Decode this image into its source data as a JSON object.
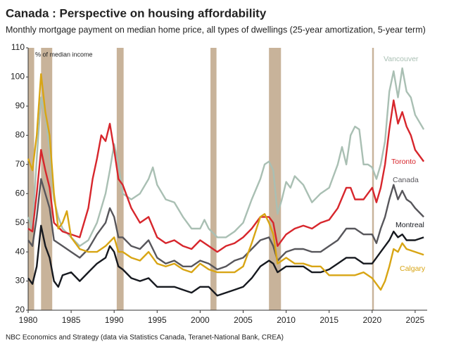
{
  "chart_data": {
    "type": "line",
    "title": "Canada : Perspective on housing affordability",
    "subtitle": "Monthly mortgage payment on median home price, all types of dwellings (25-year amortization, 5-year term)",
    "y_axis_label": "% of median income",
    "source": "NBC Economics and Strategy (data via Statistics Canada, Teranet-National Bank, CREA)",
    "xlim": [
      1980,
      2026.4
    ],
    "ylim": [
      20,
      110
    ],
    "xticks": [
      1980,
      1985,
      1990,
      1995,
      2000,
      2005,
      2010,
      2015,
      2020,
      2025
    ],
    "yticks": [
      20,
      30,
      40,
      50,
      60,
      70,
      80,
      90,
      100,
      110
    ],
    "recessions": [
      [
        1980,
        1980.7
      ],
      [
        1981.5,
        1982.8
      ],
      [
        1990.3,
        1991.1
      ],
      [
        2001.2,
        2001.9
      ],
      [
        2008.0,
        2009.4
      ],
      [
        2020.0,
        2020.2
      ]
    ],
    "recession_color": "#c2ab8f",
    "series": [
      {
        "name": "Vancouver",
        "color": "#a9bfb3",
        "x": [
          1980,
          1980.5,
          1981,
          1981.5,
          1982,
          1982.5,
          1983,
          1983.5,
          1984,
          1985,
          1986,
          1987,
          1988,
          1989,
          1989.5,
          1990,
          1990.5,
          1991,
          1992,
          1993,
          1994,
          1994.5,
          1995,
          1996,
          1997,
          1998,
          1999,
          2000,
          2000.5,
          2001,
          2002,
          2003,
          2004,
          2005,
          2006,
          2007,
          2007.5,
          2008,
          2008.5,
          2009,
          2009.5,
          2010,
          2010.5,
          2011,
          2012,
          2013,
          2014,
          2015,
          2016,
          2016.5,
          2017,
          2017.5,
          2018,
          2018.5,
          2019,
          2019.5,
          2020,
          2020.5,
          2021,
          2021.5,
          2022,
          2022.5,
          2023,
          2023.5,
          2024,
          2024.5,
          2025,
          2026
        ],
        "values": [
          52,
          48,
          72,
          93,
          87,
          75,
          58,
          52,
          48,
          45,
          42,
          44,
          50,
          60,
          68,
          77,
          70,
          60,
          58,
          60,
          65,
          69,
          63,
          58,
          57,
          52,
          48,
          48,
          51,
          48,
          45,
          45,
          47,
          50,
          58,
          65,
          70,
          71,
          68,
          53,
          58,
          64,
          62,
          66,
          63,
          57,
          60,
          62,
          70,
          76,
          70,
          80,
          83,
          82,
          70,
          70,
          69,
          65,
          70,
          78,
          95,
          102,
          93,
          103,
          95,
          93,
          87,
          82
        ]
      },
      {
        "name": "Toronto",
        "color": "#d7262c",
        "x": [
          1980,
          1980.5,
          1981,
          1981.5,
          1982,
          1982.5,
          1983,
          1984,
          1985,
          1986,
          1987,
          1987.5,
          1988,
          1988.5,
          1989,
          1989.5,
          1990,
          1990.5,
          1991,
          1992,
          1993,
          1994,
          1995,
          1996,
          1997,
          1998,
          1999,
          2000,
          2001,
          2002,
          2003,
          2004,
          2005,
          2006,
          2007,
          2008,
          2008.5,
          2009,
          2010,
          2011,
          2012,
          2013,
          2014,
          2015,
          2016,
          2017,
          2017.5,
          2018,
          2019,
          2019.5,
          2020,
          2020.5,
          2021,
          2021.5,
          2022,
          2022.5,
          2023,
          2023.5,
          2024,
          2024.5,
          2025,
          2026
        ],
        "values": [
          48,
          47,
          60,
          75,
          68,
          62,
          50,
          47,
          46,
          45,
          55,
          65,
          72,
          80,
          78,
          84,
          75,
          65,
          63,
          55,
          50,
          52,
          45,
          43,
          44,
          42,
          41,
          44,
          42,
          40,
          42,
          43,
          45,
          48,
          52,
          52,
          50,
          42,
          46,
          48,
          49,
          48,
          50,
          51,
          55,
          62,
          62,
          58,
          58,
          60,
          62,
          57,
          62,
          70,
          82,
          92,
          84,
          88,
          83,
          80,
          75,
          71
        ]
      },
      {
        "name": "Canada",
        "color": "#57565b",
        "x": [
          1980,
          1980.5,
          1981,
          1981.5,
          1982,
          1982.5,
          1983,
          1984,
          1985,
          1986,
          1987,
          1988,
          1989,
          1989.5,
          1990,
          1990.5,
          1991,
          1992,
          1993,
          1994,
          1995,
          1996,
          1997,
          1998,
          1999,
          2000,
          2001,
          2002,
          2003,
          2004,
          2005,
          2006,
          2007,
          2008,
          2008.5,
          2009,
          2010,
          2011,
          2012,
          2013,
          2014,
          2015,
          2016,
          2017,
          2018,
          2019,
          2020,
          2020.5,
          2021,
          2021.5,
          2022,
          2022.5,
          2023,
          2023.5,
          2024,
          2024.5,
          2025,
          2026
        ],
        "values": [
          44,
          42,
          52,
          65,
          60,
          55,
          44,
          42,
          40,
          38,
          41,
          46,
          50,
          55,
          52,
          45,
          45,
          42,
          41,
          44,
          38,
          36,
          37,
          35,
          35,
          37,
          36,
          34,
          35,
          37,
          38,
          41,
          44,
          45,
          42,
          37,
          40,
          41,
          41,
          40,
          40,
          42,
          44,
          48,
          48,
          46,
          46,
          43,
          48,
          52,
          58,
          63,
          58,
          61,
          58,
          57,
          55,
          52
        ]
      },
      {
        "name": "Montreal",
        "color": "#16191f",
        "x": [
          1980,
          1980.5,
          1981,
          1981.5,
          1982,
          1982.5,
          1983,
          1983.5,
          1984,
          1985,
          1986,
          1987,
          1988,
          1989,
          1989.5,
          1990,
          1990.5,
          1991,
          1992,
          1993,
          1994,
          1995,
          1996,
          1997,
          1998,
          1999,
          2000,
          2001,
          2002,
          2003,
          2004,
          2005,
          2006,
          2007,
          2008,
          2008.5,
          2009,
          2010,
          2011,
          2012,
          2013,
          2014,
          2015,
          2016,
          2017,
          2018,
          2019,
          2020,
          2020.5,
          2021,
          2021.5,
          2022,
          2022.5,
          2023,
          2023.5,
          2024,
          2025,
          2026
        ],
        "values": [
          31,
          29,
          35,
          49,
          42,
          38,
          30,
          28,
          32,
          33,
          30,
          33,
          36,
          38,
          42,
          40,
          35,
          34,
          31,
          30,
          31,
          28,
          28,
          28,
          27,
          26,
          28,
          28,
          25,
          26,
          27,
          28,
          31,
          35,
          37,
          36,
          33,
          35,
          35,
          35,
          33,
          33,
          34,
          36,
          38,
          38,
          36,
          36,
          38,
          40,
          42,
          44,
          47,
          45,
          46,
          44,
          44,
          45
        ]
      },
      {
        "name": "Calgary",
        "color": "#d8a514",
        "x": [
          1980,
          1980.5,
          1981,
          1981.5,
          1982,
          1982.5,
          1983,
          1983.5,
          1984,
          1984.5,
          1985,
          1986,
          1987,
          1988,
          1989,
          1990,
          1990.5,
          1991,
          1992,
          1993,
          1994,
          1995,
          1996,
          1997,
          1998,
          1999,
          2000,
          2001,
          2002,
          2003,
          2004,
          2005,
          2006,
          2007,
          2007.5,
          2008,
          2008.5,
          2009,
          2010,
          2011,
          2012,
          2013,
          2014,
          2015,
          2016,
          2017,
          2018,
          2019,
          2020,
          2020.5,
          2021,
          2021.5,
          2022,
          2022.5,
          2023,
          2023.5,
          2024,
          2025,
          2026
        ],
        "values": [
          72,
          68,
          80,
          101,
          88,
          80,
          60,
          48,
          50,
          54,
          45,
          41,
          40,
          40,
          42,
          45,
          40,
          40,
          38,
          37,
          40,
          36,
          35,
          36,
          34,
          33,
          36,
          34,
          33,
          33,
          33,
          35,
          43,
          52,
          53,
          50,
          46,
          36,
          38,
          36,
          36,
          35,
          35,
          32,
          32,
          32,
          32,
          33,
          31,
          29,
          27,
          30,
          35,
          41,
          40,
          43,
          41,
          40,
          39
        ]
      }
    ]
  }
}
